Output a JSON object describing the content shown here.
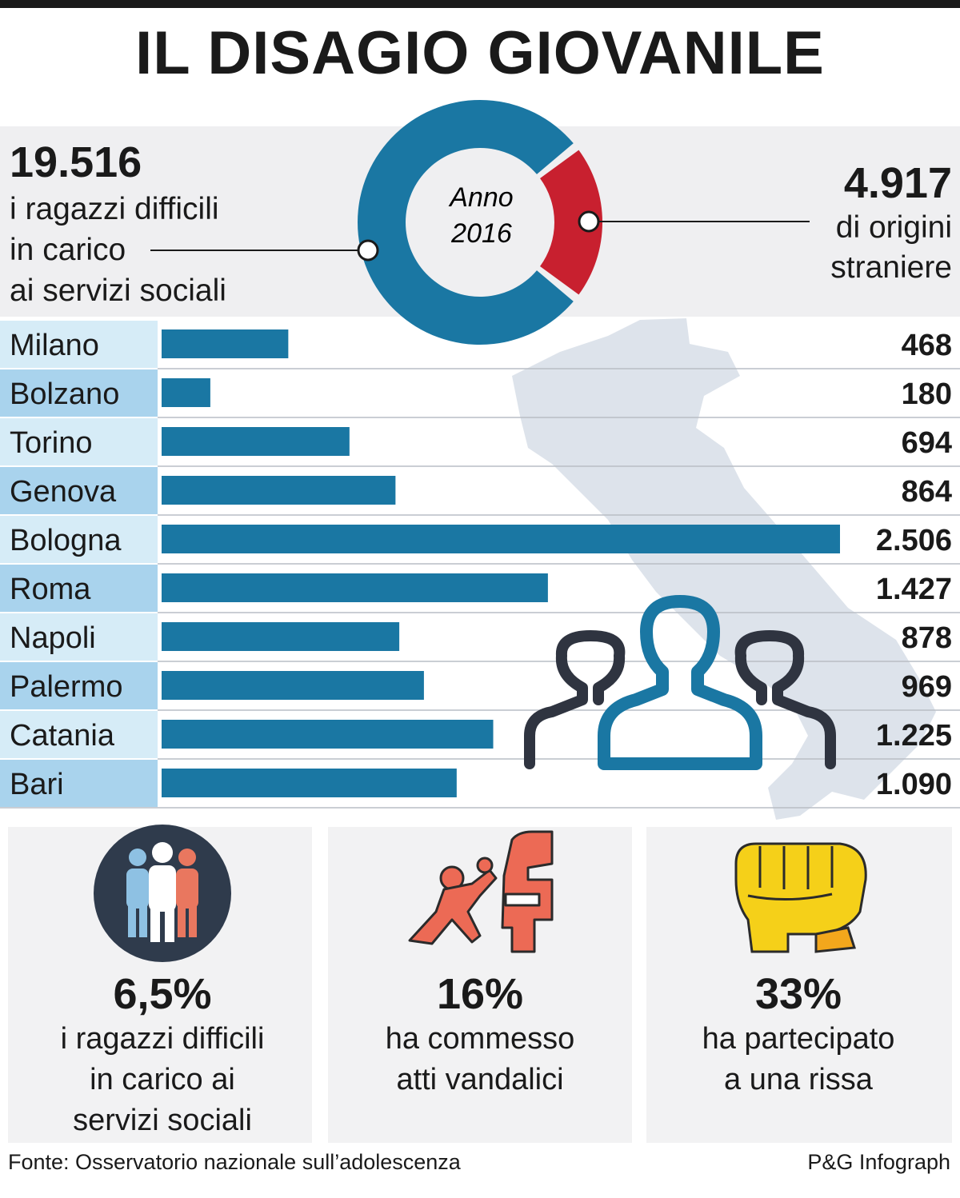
{
  "title": "IL DISAGIO GIOVANILE",
  "hero": {
    "total_value": "19.516",
    "total_label": [
      "i ragazzi difficili",
      "in carico",
      "ai servizi sociali"
    ],
    "donut_label": [
      "Anno",
      "2016"
    ],
    "foreign_value": "4.917",
    "foreign_label": [
      "di origini",
      "straniere"
    ]
  },
  "chart_data": [
    {
      "type": "pie",
      "categories": [
        "i ragazzi difficili in carico ai servizi sociali",
        "di origini straniere"
      ],
      "values": [
        19516,
        4917
      ],
      "colors": [
        "#1a77a3",
        "#c8202f"
      ]
    },
    {
      "type": "bar",
      "orientation": "horizontal",
      "categories": [
        "Milano",
        "Bolzano",
        "Torino",
        "Genova",
        "Bologna",
        "Roma",
        "Napoli",
        "Palermo",
        "Catania",
        "Bari"
      ],
      "values": [
        468,
        180,
        694,
        864,
        2506,
        1427,
        878,
        969,
        1225,
        1090
      ],
      "value_labels": [
        "468",
        "180",
        "694",
        "864",
        "2.506",
        "1.427",
        "878",
        "969",
        "1.225",
        "1.090"
      ],
      "xlim": [
        0,
        2506
      ],
      "grid": false,
      "bar_color": "#1a77a3"
    }
  ],
  "stats": [
    {
      "value": "6,5%",
      "label": [
        "i ragazzi difficili",
        "in carico ai",
        "servizi sociali"
      ],
      "icon": "people-group-icon"
    },
    {
      "value": "16%",
      "label": [
        "ha commesso",
        "atti vandalici"
      ],
      "icon": "vandal-car-icon"
    },
    {
      "value": "33%",
      "label": [
        "ha partecipato",
        "a una rissa"
      ],
      "icon": "fist-icon"
    }
  ],
  "footer": {
    "source": "Fonte: Osservatorio nazionale sull’adolescenza",
    "credit": "P&G Infograph"
  },
  "colors": {
    "blue": "#1a77a3",
    "red": "#c8202f",
    "label_light": "#d6ecf7",
    "label_dark": "#a9d3ed",
    "map": "#dde3eb"
  }
}
